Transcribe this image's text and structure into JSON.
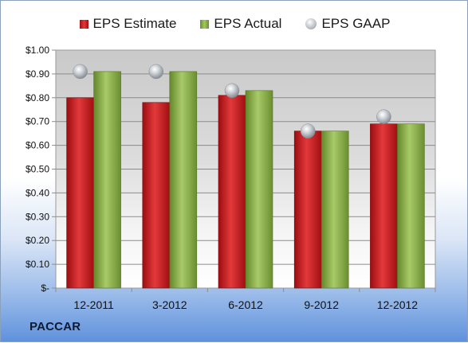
{
  "company": "PACCAR",
  "chart_data": {
    "type": "bar",
    "categories": [
      "12-2011",
      "3-2012",
      "6-2012",
      "9-2012",
      "12-2012"
    ],
    "series": [
      {
        "name": "EPS Estimate",
        "kind": "bar",
        "color": "#c8191c",
        "values": [
          0.8,
          0.78,
          0.81,
          0.66,
          0.69
        ]
      },
      {
        "name": "EPS Actual",
        "kind": "bar",
        "color": "#8fb24f",
        "values": [
          0.91,
          0.91,
          0.83,
          0.66,
          0.69
        ]
      },
      {
        "name": "EPS GAAP",
        "kind": "marker",
        "color": "#b8bcc2",
        "values": [
          0.91,
          0.91,
          0.83,
          0.66,
          0.72
        ]
      }
    ],
    "y_tick_labels": [
      "$-",
      "$0.10",
      "$0.20",
      "$0.30",
      "$0.40",
      "$0.50",
      "$0.60",
      "$0.70",
      "$0.80",
      "$0.90",
      "$1.00"
    ],
    "y_ticks": [
      0,
      0.1,
      0.2,
      0.3,
      0.4,
      0.5,
      0.6,
      0.7,
      0.8,
      0.9,
      1.0
    ],
    "ylim": [
      0,
      1.0
    ],
    "grid": true,
    "legend_position": "top"
  }
}
